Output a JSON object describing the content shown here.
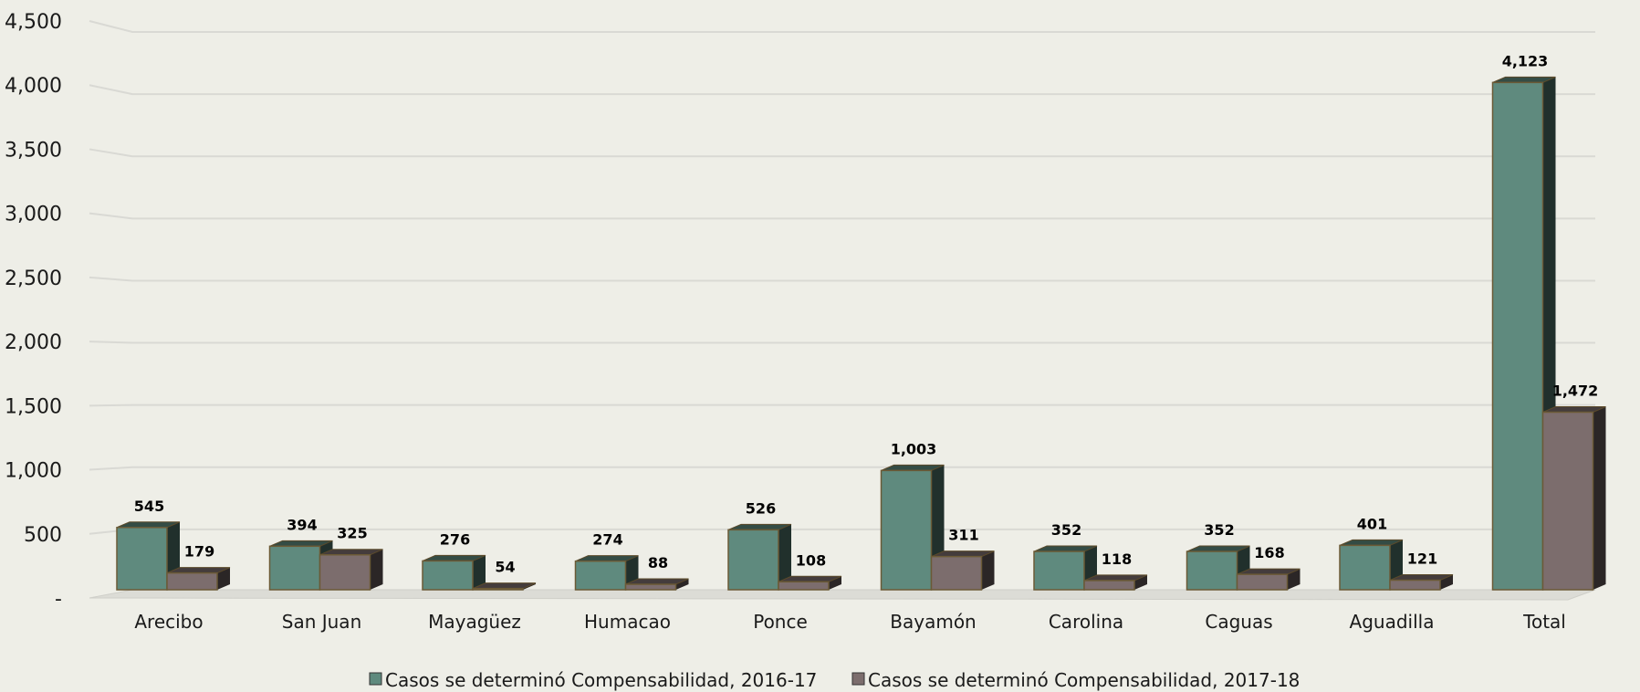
{
  "chart_data": {
    "type": "bar",
    "categories": [
      "Arecibo",
      "San Juan",
      "Mayagüez",
      "Humacao",
      "Ponce",
      "Bayamón",
      "Carolina",
      "Caguas",
      "Aguadilla",
      "Total"
    ],
    "series": [
      {
        "name": "Casos se determinó Compensabilidad, 2016-17",
        "values": [
          545,
          394,
          276,
          274,
          526,
          1003,
          352,
          352,
          401,
          4123
        ],
        "labels": [
          "545",
          "394",
          "276",
          "274",
          "526",
          "1,003",
          "352",
          "352",
          "401",
          "4,123"
        ],
        "color": "#5f8a7e"
      },
      {
        "name": "Casos se determinó Compensabilidad, 2017-18",
        "values": [
          179,
          325,
          54,
          88,
          108,
          311,
          118,
          168,
          121,
          1472
        ],
        "labels": [
          "179",
          "325",
          "54",
          "88",
          "108",
          "311",
          "118",
          "168",
          "121",
          "1,472"
        ],
        "color": "#7c6d6d"
      }
    ],
    "y_ticks": [
      0,
      500,
      1000,
      1500,
      2000,
      2500,
      3000,
      3500,
      4000,
      4500
    ],
    "y_tick_labels": [
      "-",
      "500",
      "1,000",
      "1,500",
      "2,000",
      "2,500",
      "3,000",
      "3,500",
      "4,000",
      "4,500"
    ],
    "ylim": [
      0,
      4500
    ],
    "grid": true,
    "legend": "bottom-center",
    "title": "",
    "xlabel": "",
    "ylabel": ""
  }
}
